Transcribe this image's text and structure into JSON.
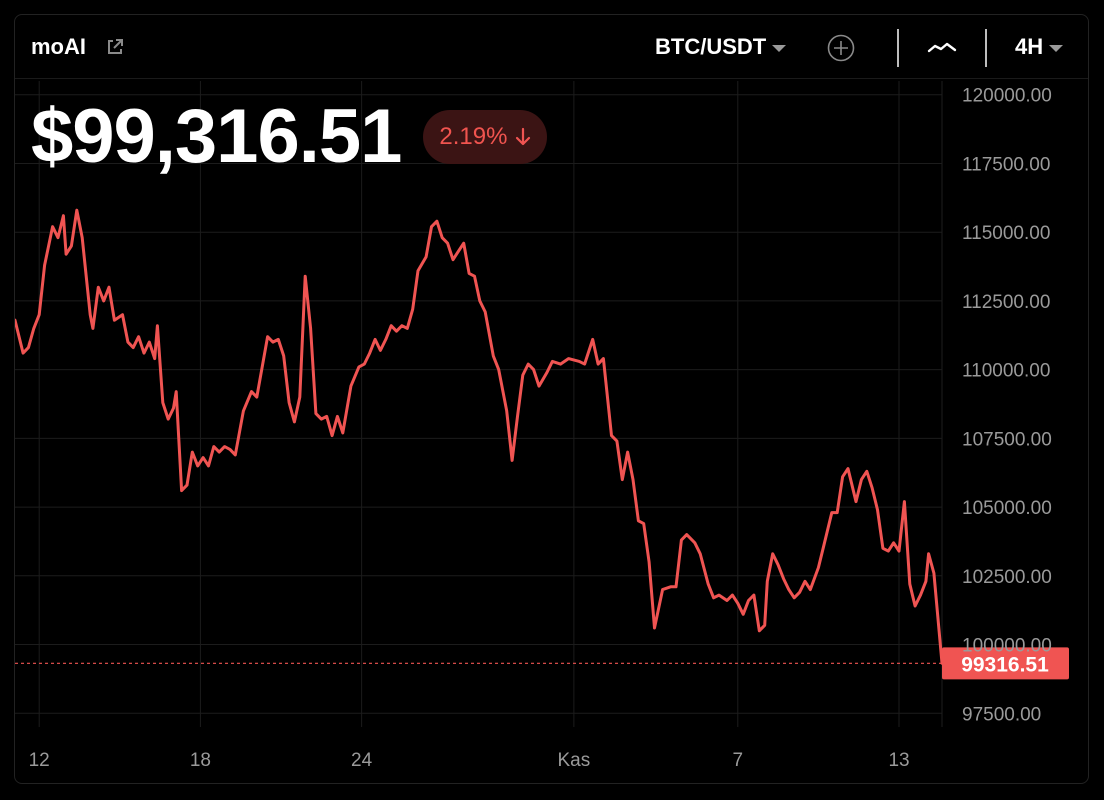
{
  "header": {
    "symbol": "moAI",
    "pair": "BTC/USDT",
    "interval": "4H",
    "icons": {
      "external_link": "external-link-icon",
      "pair_dropdown": "chevron-down-icon",
      "add": "plus-circle-icon",
      "chart_type": "line-chart-icon",
      "interval_dropdown": "chevron-down-icon"
    }
  },
  "price": {
    "current": "$99,316.51",
    "change": "2.19%",
    "direction_icon": "arrow-down-icon"
  },
  "colors": {
    "line": "#f05452",
    "down": "#f05452",
    "badge_bg": "#3b1414",
    "grid": "#1c1c1c",
    "axis_text": "#9a9a9a",
    "background": "#000000"
  },
  "chart_data": {
    "type": "line",
    "title": "",
    "xlabel": "",
    "ylabel": "",
    "ylim": [
      97000,
      120500
    ],
    "y_ticks": [
      "120000.00",
      "117500.00",
      "115000.00",
      "112500.00",
      "110000.00",
      "107500.00",
      "105000.00",
      "102500.00",
      "100000.00",
      "97500.00"
    ],
    "x_ticks": [
      {
        "label": "12",
        "x": 0.9
      },
      {
        "label": "18",
        "x": 6.9
      },
      {
        "label": "24",
        "x": 12.9
      },
      {
        "label": "Kas",
        "x": 20.8
      },
      {
        "label": "7",
        "x": 26.9
      },
      {
        "label": "13",
        "x": 32.9
      }
    ],
    "last_value_label": "99316.51",
    "last_value": 99316.51,
    "grid": true,
    "series": [
      {
        "values": [
          [
            0.0,
            111800
          ],
          [
            0.3,
            110600
          ],
          [
            0.5,
            110800
          ],
          [
            0.7,
            111500
          ],
          [
            0.9,
            112000
          ],
          [
            1.1,
            113800
          ],
          [
            1.4,
            115200
          ],
          [
            1.6,
            114800
          ],
          [
            1.8,
            115600
          ],
          [
            1.9,
            114200
          ],
          [
            2.1,
            114500
          ],
          [
            2.3,
            115800
          ],
          [
            2.5,
            114800
          ],
          [
            2.8,
            112000
          ],
          [
            2.9,
            111500
          ],
          [
            3.1,
            113000
          ],
          [
            3.3,
            112500
          ],
          [
            3.5,
            113000
          ],
          [
            3.7,
            111800
          ],
          [
            4.0,
            112000
          ],
          [
            4.2,
            111000
          ],
          [
            4.4,
            110800
          ],
          [
            4.6,
            111200
          ],
          [
            4.8,
            110600
          ],
          [
            5.0,
            111000
          ],
          [
            5.2,
            110400
          ],
          [
            5.3,
            111600
          ],
          [
            5.5,
            108800
          ],
          [
            5.7,
            108200
          ],
          [
            5.9,
            108600
          ],
          [
            6.0,
            109200
          ],
          [
            6.2,
            105600
          ],
          [
            6.4,
            105800
          ],
          [
            6.6,
            107000
          ],
          [
            6.8,
            106500
          ],
          [
            7.0,
            106800
          ],
          [
            7.2,
            106500
          ],
          [
            7.4,
            107200
          ],
          [
            7.6,
            107000
          ],
          [
            7.8,
            107200
          ],
          [
            8.0,
            107100
          ],
          [
            8.2,
            106900
          ],
          [
            8.5,
            108500
          ],
          [
            8.8,
            109200
          ],
          [
            9.0,
            109000
          ],
          [
            9.4,
            111200
          ],
          [
            9.6,
            111000
          ],
          [
            9.8,
            111100
          ],
          [
            10.0,
            110500
          ],
          [
            10.2,
            108800
          ],
          [
            10.4,
            108100
          ],
          [
            10.6,
            109000
          ],
          [
            10.8,
            113400
          ],
          [
            11.0,
            111500
          ],
          [
            11.2,
            108400
          ],
          [
            11.4,
            108200
          ],
          [
            11.6,
            108300
          ],
          [
            11.8,
            107600
          ],
          [
            12.0,
            108300
          ],
          [
            12.2,
            107700
          ],
          [
            12.5,
            109400
          ],
          [
            12.8,
            110100
          ],
          [
            13.0,
            110200
          ],
          [
            13.2,
            110600
          ],
          [
            13.4,
            111100
          ],
          [
            13.6,
            110700
          ],
          [
            13.8,
            111100
          ],
          [
            14.0,
            111600
          ],
          [
            14.2,
            111400
          ],
          [
            14.4,
            111600
          ],
          [
            14.6,
            111500
          ],
          [
            14.8,
            112200
          ],
          [
            15.0,
            113600
          ],
          [
            15.3,
            114100
          ],
          [
            15.5,
            115200
          ],
          [
            15.7,
            115400
          ],
          [
            15.9,
            114800
          ],
          [
            16.1,
            114600
          ],
          [
            16.3,
            114000
          ],
          [
            16.5,
            114300
          ],
          [
            16.7,
            114600
          ],
          [
            16.9,
            113500
          ],
          [
            17.1,
            113400
          ],
          [
            17.3,
            112500
          ],
          [
            17.5,
            112100
          ],
          [
            17.8,
            110500
          ],
          [
            18.0,
            110000
          ],
          [
            18.3,
            108500
          ],
          [
            18.5,
            106700
          ],
          [
            18.7,
            108300
          ],
          [
            18.9,
            109800
          ],
          [
            19.1,
            110200
          ],
          [
            19.3,
            110000
          ],
          [
            19.5,
            109400
          ],
          [
            19.8,
            109900
          ],
          [
            20.0,
            110300
          ],
          [
            20.3,
            110200
          ],
          [
            20.6,
            110400
          ],
          [
            21.0,
            110300
          ],
          [
            21.2,
            110200
          ],
          [
            21.5,
            111100
          ],
          [
            21.7,
            110200
          ],
          [
            21.9,
            110400
          ],
          [
            22.2,
            107600
          ],
          [
            22.4,
            107400
          ],
          [
            22.6,
            106000
          ],
          [
            22.8,
            107000
          ],
          [
            23.0,
            106000
          ],
          [
            23.2,
            104500
          ],
          [
            23.4,
            104400
          ],
          [
            23.6,
            103000
          ],
          [
            23.8,
            100600
          ],
          [
            24.1,
            102000
          ],
          [
            24.4,
            102100
          ],
          [
            24.6,
            102100
          ],
          [
            24.8,
            103800
          ],
          [
            25.0,
            104000
          ],
          [
            25.3,
            103700
          ],
          [
            25.5,
            103300
          ],
          [
            25.8,
            102200
          ],
          [
            26.0,
            101700
          ],
          [
            26.2,
            101800
          ],
          [
            26.5,
            101600
          ],
          [
            26.7,
            101800
          ],
          [
            26.9,
            101500
          ],
          [
            27.1,
            101100
          ],
          [
            27.3,
            101600
          ],
          [
            27.5,
            101800
          ],
          [
            27.7,
            100500
          ],
          [
            27.9,
            100700
          ],
          [
            28.0,
            102300
          ],
          [
            28.2,
            103300
          ],
          [
            28.4,
            102900
          ],
          [
            28.6,
            102400
          ],
          [
            28.8,
            102000
          ],
          [
            29.0,
            101700
          ],
          [
            29.2,
            101900
          ],
          [
            29.4,
            102300
          ],
          [
            29.6,
            102000
          ],
          [
            29.9,
            102800
          ],
          [
            30.1,
            103600
          ],
          [
            30.4,
            104800
          ],
          [
            30.6,
            104800
          ],
          [
            30.8,
            106100
          ],
          [
            31.0,
            106400
          ],
          [
            31.3,
            105200
          ],
          [
            31.5,
            106000
          ],
          [
            31.7,
            106300
          ],
          [
            31.9,
            105700
          ],
          [
            32.1,
            104900
          ],
          [
            32.3,
            103500
          ],
          [
            32.5,
            103400
          ],
          [
            32.7,
            103700
          ],
          [
            32.9,
            103400
          ],
          [
            33.1,
            105200
          ],
          [
            33.3,
            102200
          ],
          [
            33.5,
            101400
          ],
          [
            33.7,
            101800
          ],
          [
            33.9,
            102300
          ],
          [
            34.0,
            103300
          ],
          [
            34.2,
            102600
          ],
          [
            34.5,
            99316.51
          ]
        ]
      }
    ]
  }
}
